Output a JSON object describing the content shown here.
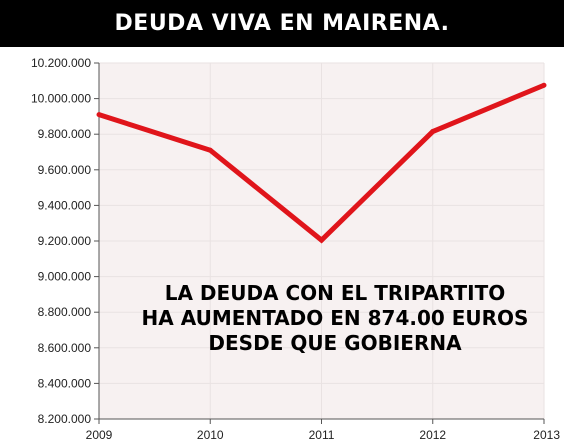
{
  "chart_data": {
    "type": "line",
    "title": "DEUDA VIVA EN MAIRENA.",
    "x": [
      2009,
      2010,
      2011,
      2012,
      2013
    ],
    "x_labels": [
      "2009",
      "2010",
      "2011",
      "2012",
      "2013"
    ],
    "series": [
      {
        "values": [
          9910000,
          9710000,
          9205000,
          9815000,
          10075000
        ]
      }
    ],
    "ylim": [
      8200000,
      10200000
    ],
    "y_ticks": [
      8200000,
      8400000,
      8600000,
      8800000,
      9000000,
      9200000,
      9400000,
      9600000,
      9800000,
      10000000,
      10200000
    ],
    "y_tick_labels": [
      "8.200.000",
      "8.400.000",
      "8.600.000",
      "8.800.000",
      "9.000.000",
      "9.200.000",
      "9.400.000",
      "9.600.000",
      "9.800.000",
      "10.000.000",
      "10.200.000"
    ],
    "xlabel": "",
    "ylabel": "",
    "grid": true,
    "annotation": [
      "LA DEUDA CON EL TRIPARTITO",
      "HA AUMENTADO EN 874.00 EUROS",
      "DESDE QUE GOBIERNA"
    ],
    "colors": {
      "line": "#e0151b",
      "plot_background": "#f7f1f1",
      "grid": "#e9e2e2",
      "axis": "#555555"
    }
  }
}
